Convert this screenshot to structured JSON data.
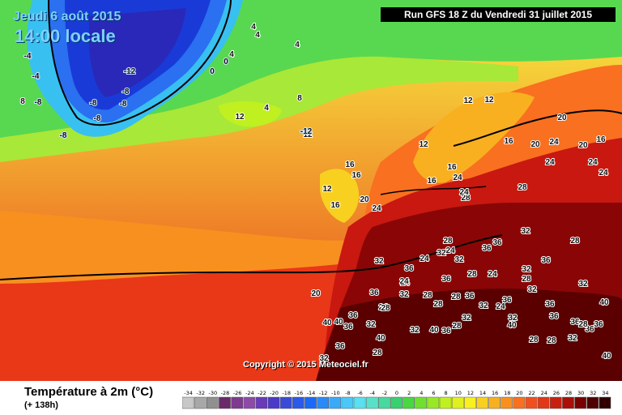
{
  "header": {
    "date": "Jeudi 6 août 2015",
    "local_time": "14:00 locale",
    "run": "Run GFS 18 Z du Vendredi 31 juillet 2015"
  },
  "map": {
    "copyright": "Copyright © 2015 Meteociel.fr",
    "labels": [
      {
        "v": "-12"
      },
      {
        "v": "-8"
      },
      {
        "v": "-8"
      },
      {
        "v": "-8"
      },
      {
        "v": "-8"
      },
      {
        "v": "-4"
      },
      {
        "v": "-4"
      },
      {
        "v": "-8"
      },
      {
        "v": "-8"
      },
      {
        "v": "0"
      },
      {
        "v": "0"
      },
      {
        "v": "4"
      },
      {
        "v": "4"
      },
      {
        "v": "4"
      },
      {
        "v": "4"
      },
      {
        "v": "8"
      },
      {
        "v": "8"
      },
      {
        "v": "12"
      },
      {
        "v": "12"
      },
      {
        "v": "4"
      },
      {
        "v": "-12"
      },
      {
        "v": "12"
      },
      {
        "v": "12"
      },
      {
        "v": "12"
      },
      {
        "v": "16"
      },
      {
        "v": "16"
      },
      {
        "v": "16"
      },
      {
        "v": "12"
      },
      {
        "v": "16"
      },
      {
        "v": "20"
      },
      {
        "v": "24"
      },
      {
        "v": "16"
      },
      {
        "v": "16"
      },
      {
        "v": "20"
      },
      {
        "v": "20"
      },
      {
        "v": "24"
      },
      {
        "v": "20"
      },
      {
        "v": "16"
      },
      {
        "v": "24"
      },
      {
        "v": "24"
      },
      {
        "v": "24"
      },
      {
        "v": "28"
      },
      {
        "v": "24"
      },
      {
        "v": "28"
      },
      {
        "v": "24"
      },
      {
        "v": "24"
      },
      {
        "v": "24"
      },
      {
        "v": "32"
      },
      {
        "v": "36"
      },
      {
        "v": "32"
      },
      {
        "v": "32"
      },
      {
        "v": "36"
      },
      {
        "v": "24"
      },
      {
        "v": "28"
      },
      {
        "v": "36"
      },
      {
        "v": "32"
      },
      {
        "v": "28"
      },
      {
        "v": "36"
      },
      {
        "v": "32"
      },
      {
        "v": "24"
      },
      {
        "v": "36"
      },
      {
        "v": "28"
      },
      {
        "v": "28"
      },
      {
        "v": "32"
      },
      {
        "v": "36"
      },
      {
        "v": "28"
      },
      {
        "v": "20"
      },
      {
        "v": "36"
      },
      {
        "v": "28"
      },
      {
        "v": "32"
      },
      {
        "v": "24"
      },
      {
        "v": "40"
      },
      {
        "v": "36"
      },
      {
        "v": "28"
      },
      {
        "v": "40"
      },
      {
        "v": "36"
      },
      {
        "v": "32"
      },
      {
        "v": "32"
      },
      {
        "v": "28"
      },
      {
        "v": "36"
      },
      {
        "v": "40"
      },
      {
        "v": "32"
      },
      {
        "v": "32"
      },
      {
        "v": "40"
      },
      {
        "v": "40"
      },
      {
        "v": "36"
      },
      {
        "v": "32"
      },
      {
        "v": "28"
      },
      {
        "v": "36"
      },
      {
        "v": "36"
      },
      {
        "v": "40"
      },
      {
        "v": "36"
      },
      {
        "v": "32"
      },
      {
        "v": "28"
      },
      {
        "v": "36"
      },
      {
        "v": "24"
      },
      {
        "v": "28"
      },
      {
        "v": "36"
      },
      {
        "v": "32"
      },
      {
        "v": "28"
      },
      {
        "v": "24"
      },
      {
        "v": "40"
      },
      {
        "v": "28"
      },
      {
        "v": "32"
      },
      {
        "v": "36"
      }
    ]
  },
  "legend": {
    "title": "Température à 2m (°C)",
    "subtitle": "(+ 138h)",
    "ticks": [
      "-34",
      "-32",
      "-30",
      "-28",
      "-26",
      "-24",
      "-22",
      "-20",
      "-18",
      "-16",
      "-14",
      "-12",
      "-10",
      "-8",
      "-6",
      "-4",
      "-2",
      "0",
      "2",
      "4",
      "6",
      "8",
      "10",
      "12",
      "14",
      "16",
      "18",
      "20",
      "22",
      "24",
      "26",
      "28",
      "30",
      "32",
      "34"
    ],
    "colors": [
      "#c8c8c8",
      "#a8a8a8",
      "#909090",
      "#6a2a6a",
      "#7e3a8e",
      "#8e4aa8",
      "#6a3ab8",
      "#4a3ac8",
      "#3a4ad8",
      "#2a5ae8",
      "#1a6af8",
      "#2a8af8",
      "#3aaaf8",
      "#4ac8f8",
      "#5ae0f0",
      "#5ae0c8",
      "#48d8a0",
      "#38d070",
      "#48d840",
      "#70e030",
      "#98e828",
      "#c0f020",
      "#e0f020",
      "#f8f020",
      "#f8d020",
      "#f8b020",
      "#f89020",
      "#f87020",
      "#f05020",
      "#e03818",
      "#c82010",
      "#a81008",
      "#780000",
      "#500000",
      "#300000"
    ]
  }
}
